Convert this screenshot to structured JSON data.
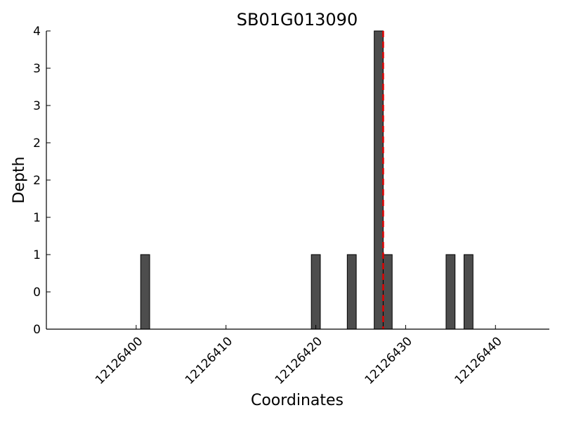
{
  "chart_data": {
    "type": "bar",
    "title": "SB01G013090",
    "xlabel": "Coordinates",
    "ylabel": "Depth",
    "xlim": [
      12126390,
      12126446
    ],
    "ylim": [
      0,
      4
    ],
    "xticks": [
      12126400,
      12126410,
      12126420,
      12126430,
      12126440
    ],
    "yticks": [
      {
        "value": 0,
        "label": "0"
      },
      {
        "value": 0.5,
        "label": "0"
      },
      {
        "value": 1,
        "label": "1"
      },
      {
        "value": 1.5,
        "label": "1"
      },
      {
        "value": 2,
        "label": "2"
      },
      {
        "value": 2.5,
        "label": "2"
      },
      {
        "value": 3,
        "label": "3"
      },
      {
        "value": 3.5,
        "label": "3"
      },
      {
        "value": 4,
        "label": "4"
      }
    ],
    "bars": [
      {
        "x": 12126401,
        "value": 1
      },
      {
        "x": 12126420,
        "value": 1
      },
      {
        "x": 12126424,
        "value": 1
      },
      {
        "x": 12126427,
        "value": 4
      },
      {
        "x": 12126428,
        "value": 1
      },
      {
        "x": 12126435,
        "value": 1
      },
      {
        "x": 12126437,
        "value": 1
      }
    ],
    "marker_line": {
      "x": 12126427.5,
      "style": "dashed",
      "color": "#dd0000"
    },
    "bar_color": "#4d4d4d",
    "grid": false
  }
}
